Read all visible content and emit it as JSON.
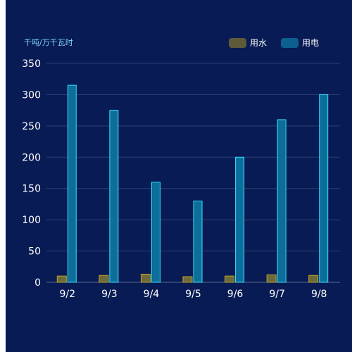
{
  "chart_data": {
    "type": "bar",
    "unit_label": "千吨/万千瓦时",
    "categories": [
      "9/2",
      "9/3",
      "9/4",
      "9/5",
      "9/6",
      "9/7",
      "9/8"
    ],
    "series": [
      {
        "name": "用水",
        "values": [
          10,
          11,
          13,
          9,
          10,
          12,
          11
        ],
        "color": "#6b6a3c",
        "stroke": "#c9a227"
      },
      {
        "name": "用电",
        "values": [
          315,
          275,
          160,
          130,
          200,
          260,
          300
        ],
        "color": "#0e6e9a",
        "stroke": "#33e0ff"
      }
    ],
    "ylim": [
      0,
      350
    ],
    "yticks": [
      0,
      50,
      100,
      150,
      200,
      250,
      300,
      350
    ],
    "grid": true,
    "legend_position": "top-right"
  }
}
